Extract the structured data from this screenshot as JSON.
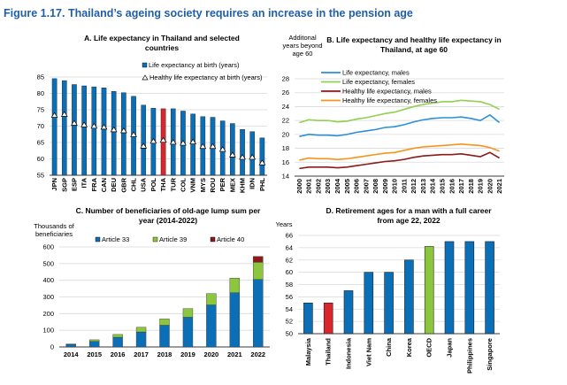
{
  "figure_title": "Figure 1.17. Thailand’s ageing society requires an increase in the pension age",
  "colors": {
    "title": "#1f5fa8",
    "bar_blue": "#0b6fb8",
    "bar_red": "#d7262d",
    "bar_green": "#8cc63f",
    "dark_red": "#8b1a1a",
    "line_blue": "#2b8fd6",
    "line_green": "#92d050",
    "line_darkred": "#8b1a1a",
    "line_orange": "#f7941d"
  },
  "chart_data": [
    {
      "id": "A",
      "type": "bar",
      "title_lines": [
        "A. Life expectancy in Thailand and selected",
        "countries"
      ],
      "ylim": [
        55,
        85
      ],
      "yticks": [
        55,
        60,
        65,
        70,
        75,
        80,
        85
      ],
      "grid": true,
      "legend": "top-right",
      "categories": [
        "JPN",
        "SGP",
        "ESP",
        "ITA",
        "FRA",
        "CAN",
        "DEU",
        "GBR",
        "CHL",
        "USA",
        "POL",
        "THA",
        "TUR",
        "COL",
        "VNM",
        "MYS",
        "ROU",
        "PER",
        "MEX",
        "KHM",
        "IDN",
        "PHL"
      ],
      "highlight": "THA",
      "series": [
        {
          "name": "Life expectancy at birth (years)",
          "marker": "bar",
          "values": [
            84.5,
            83.9,
            82.7,
            82.3,
            82.0,
            81.7,
            80.6,
            80.2,
            79.1,
            76.4,
            75.5,
            75.3,
            75.3,
            74.6,
            73.7,
            72.9,
            72.7,
            71.6,
            70.8,
            69.0,
            68.3,
            66.4
          ]
        },
        {
          "name": "Healthy life expectancy at birth (years)",
          "marker": "triangle",
          "values": [
            73.3,
            73.6,
            70.9,
            70.4,
            70.0,
            69.7,
            68.9,
            68.6,
            67.4,
            63.9,
            65.4,
            65.7,
            65.1,
            64.8,
            65.2,
            63.8,
            63.8,
            62.9,
            61.2,
            60.5,
            60.5,
            58.8
          ]
        }
      ]
    },
    {
      "id": "B",
      "type": "line",
      "title_lines": [
        "B. Life expectancy and healthy life expectancy in",
        "Thailand, at age 60"
      ],
      "ylabel_lines": [
        "Additonal",
        "years beyond",
        "age 60"
      ],
      "ylim": [
        14,
        28
      ],
      "yticks": [
        14,
        16,
        18,
        20,
        22,
        24,
        26,
        28
      ],
      "grid": true,
      "legend": "top-left",
      "x": [
        "2000",
        "2001",
        "2002",
        "2003",
        "2004",
        "2005",
        "2006",
        "2007",
        "2008",
        "2009",
        "2010",
        "2011",
        "2012",
        "2013",
        "2014",
        "2015",
        "2016",
        "2017",
        "2018",
        "2019",
        "2020",
        "2021"
      ],
      "series": [
        {
          "name": "Life expectancy, males",
          "color": "#2b8fd6",
          "values": [
            19.7,
            20.0,
            19.9,
            19.9,
            19.8,
            20.0,
            20.3,
            20.5,
            20.7,
            21.0,
            21.1,
            21.4,
            21.8,
            22.1,
            22.3,
            22.4,
            22.4,
            22.5,
            22.3,
            22.0,
            22.8,
            21.7
          ]
        },
        {
          "name": "Life expectancy, females",
          "color": "#92d050",
          "values": [
            21.7,
            22.1,
            22.0,
            22.0,
            21.8,
            21.9,
            22.2,
            22.4,
            22.7,
            23.0,
            23.2,
            23.6,
            24.0,
            24.3,
            24.5,
            24.7,
            24.7,
            24.9,
            24.8,
            24.7,
            24.3,
            23.6
          ]
        },
        {
          "name": "Healthy life expectancy, males",
          "color": "#8b1a1a",
          "values": [
            15.1,
            15.3,
            15.3,
            15.3,
            15.2,
            15.3,
            15.5,
            15.7,
            15.9,
            16.1,
            16.2,
            16.4,
            16.7,
            16.9,
            17.0,
            17.1,
            17.1,
            17.2,
            17.0,
            16.8,
            17.4,
            16.6
          ]
        },
        {
          "name": "Healthy life expectancy, females",
          "color": "#f7941d",
          "values": [
            16.3,
            16.6,
            16.5,
            16.5,
            16.4,
            16.5,
            16.7,
            16.9,
            17.1,
            17.3,
            17.4,
            17.7,
            18.0,
            18.2,
            18.3,
            18.4,
            18.5,
            18.6,
            18.5,
            18.4,
            18.1,
            17.6
          ]
        }
      ]
    },
    {
      "id": "C",
      "type": "bar",
      "stacked": true,
      "title_lines": [
        "C. Number of beneficiaries of old-age lump sum per",
        "year (2014-2022)"
      ],
      "ylabel_lines": [
        "Thousands of",
        "beneficiaries"
      ],
      "ylim": [
        0,
        600
      ],
      "yticks": [
        0,
        100,
        200,
        300,
        400,
        500,
        600
      ],
      "grid": true,
      "legend": "top",
      "categories": [
        "2014",
        "2015",
        "2016",
        "2017",
        "2018",
        "2019",
        "2020",
        "2021",
        "2022"
      ],
      "series": [
        {
          "name": "Article 33",
          "color": "#0b6fb8",
          "values": [
            15,
            33,
            58,
            90,
            130,
            178,
            252,
            325,
            405
          ]
        },
        {
          "name": "Article 39",
          "color": "#8cc63f",
          "values": [
            3,
            10,
            17,
            28,
            38,
            52,
            68,
            88,
            103
          ]
        },
        {
          "name": "Article 40",
          "color": "#8b1a1a",
          "values": [
            0,
            0,
            0,
            0,
            0,
            0,
            0,
            0,
            35
          ]
        }
      ]
    },
    {
      "id": "D",
      "type": "bar",
      "title_lines": [
        "D. Retirement ages for a man with a full career",
        "from age 22, 2022"
      ],
      "ylabel_lines": [
        "Years"
      ],
      "ylim": [
        50,
        66
      ],
      "yticks": [
        50,
        52,
        54,
        56,
        58,
        60,
        62,
        64,
        66
      ],
      "grid": true,
      "categories": [
        "Malaysia",
        "Thailand",
        "Indonesia",
        "Viet Nam",
        "China",
        "Korea",
        "OECD",
        "Japan",
        "Philippines",
        "Singapore"
      ],
      "values": [
        55,
        55,
        57,
        60,
        60,
        62,
        64.2,
        65,
        65,
        65
      ],
      "highlight": {
        "Thailand": "#d7262d",
        "OECD": "#8cc63f"
      }
    }
  ]
}
